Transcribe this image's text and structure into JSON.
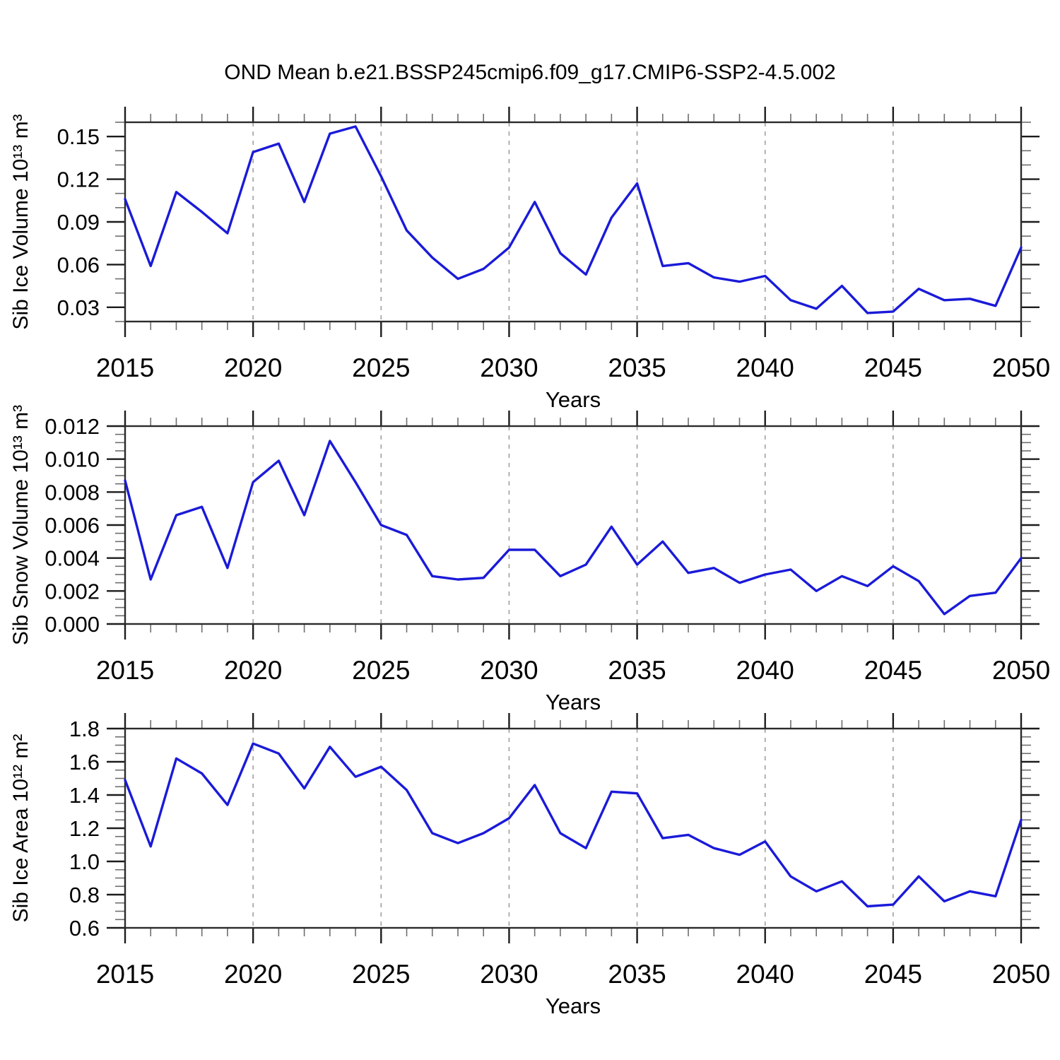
{
  "title": "OND Mean b.e21.BSSP245cmip6.f09_g17.CMIP6-SSP2-4.5.002",
  "line_color": "#1a1ad9",
  "frame_color": "#2b2b2b",
  "grid_color": "#9a9a9a",
  "chart_data": [
    {
      "type": "line",
      "name": "sib-ice-volume",
      "ylabel": "Sib Ice Volume 10¹³ m³",
      "xlabel": "Years",
      "x": [
        2015,
        2016,
        2017,
        2018,
        2019,
        2020,
        2021,
        2022,
        2023,
        2024,
        2025,
        2026,
        2027,
        2028,
        2029,
        2030,
        2031,
        2032,
        2033,
        2034,
        2035,
        2036,
        2037,
        2038,
        2039,
        2040,
        2041,
        2042,
        2043,
        2044,
        2045,
        2046,
        2047,
        2048,
        2049,
        2050
      ],
      "values": [
        0.106,
        0.059,
        0.111,
        0.097,
        0.082,
        0.139,
        0.145,
        0.104,
        0.152,
        0.157,
        0.122,
        0.084,
        0.065,
        0.05,
        0.057,
        0.072,
        0.104,
        0.068,
        0.053,
        0.093,
        0.117,
        0.059,
        0.061,
        0.051,
        0.048,
        0.052,
        0.035,
        0.029,
        0.045,
        0.026,
        0.027,
        0.043,
        0.035,
        0.036,
        0.031,
        0.072
      ],
      "xlim": [
        2015,
        2050
      ],
      "ylim": [
        0.02,
        0.16
      ],
      "xticks": [
        2015,
        2020,
        2025,
        2030,
        2035,
        2040,
        2045,
        2050
      ],
      "xtick_labels": [
        "2015",
        "2020",
        "2025",
        "2030",
        "2035",
        "2040",
        "2045",
        "2050"
      ],
      "x_minor_step": 1,
      "yticks": [
        0.03,
        0.06,
        0.09,
        0.12,
        0.15
      ],
      "ytick_labels": [
        "0.03",
        "0.06",
        "0.09",
        "0.12",
        "0.15"
      ],
      "y_minor_step": 0.01,
      "grid_lines_x": [
        2020,
        2025,
        2030,
        2035,
        2040,
        2045
      ],
      "grid_style": "dashed-vertical",
      "legend": "none"
    },
    {
      "type": "line",
      "name": "sib-snow-volume",
      "ylabel": "Sib Snow Volume 10¹³ m³",
      "xlabel": "Years",
      "x": [
        2015,
        2016,
        2017,
        2018,
        2019,
        2020,
        2021,
        2022,
        2023,
        2024,
        2025,
        2026,
        2027,
        2028,
        2029,
        2030,
        2031,
        2032,
        2033,
        2034,
        2035,
        2036,
        2037,
        2038,
        2039,
        2040,
        2041,
        2042,
        2043,
        2044,
        2045,
        2046,
        2047,
        2048,
        2049,
        2050
      ],
      "values": [
        0.0087,
        0.0027,
        0.0066,
        0.0071,
        0.0034,
        0.0086,
        0.0099,
        0.0066,
        0.0111,
        0.0086,
        0.006,
        0.0054,
        0.0029,
        0.0027,
        0.0028,
        0.0045,
        0.0045,
        0.0029,
        0.0036,
        0.0059,
        0.0036,
        0.005,
        0.0031,
        0.0034,
        0.0025,
        0.003,
        0.0033,
        0.002,
        0.0029,
        0.0023,
        0.0035,
        0.0026,
        0.0006,
        0.0017,
        0.0019,
        0.004
      ],
      "xlim": [
        2015,
        2050
      ],
      "ylim": [
        0.0,
        0.012
      ],
      "xticks": [
        2015,
        2020,
        2025,
        2030,
        2035,
        2040,
        2045,
        2050
      ],
      "xtick_labels": [
        "2015",
        "2020",
        "2025",
        "2030",
        "2035",
        "2040",
        "2045",
        "2050"
      ],
      "x_minor_step": 1,
      "yticks": [
        0.0,
        0.002,
        0.004,
        0.006,
        0.008,
        0.01,
        0.012
      ],
      "ytick_labels": [
        "0.000",
        "0.002",
        "0.004",
        "0.006",
        "0.008",
        "0.010",
        "0.012"
      ],
      "y_minor_step": 0.0005,
      "grid_lines_x": [
        2020,
        2025,
        2030,
        2035,
        2040,
        2045
      ],
      "grid_style": "dashed-vertical",
      "legend": "none"
    },
    {
      "type": "line",
      "name": "sib-ice-area",
      "ylabel": "Sib Ice Area 10¹² m²",
      "xlabel": "Years",
      "x": [
        2015,
        2016,
        2017,
        2018,
        2019,
        2020,
        2021,
        2022,
        2023,
        2024,
        2025,
        2026,
        2027,
        2028,
        2029,
        2030,
        2031,
        2032,
        2033,
        2034,
        2035,
        2036,
        2037,
        2038,
        2039,
        2040,
        2041,
        2042,
        2043,
        2044,
        2045,
        2046,
        2047,
        2048,
        2049,
        2050
      ],
      "values": [
        1.49,
        1.09,
        1.62,
        1.53,
        1.34,
        1.71,
        1.65,
        1.44,
        1.69,
        1.51,
        1.57,
        1.43,
        1.17,
        1.11,
        1.17,
        1.26,
        1.46,
        1.17,
        1.08,
        1.42,
        1.41,
        1.14,
        1.16,
        1.08,
        1.04,
        1.12,
        0.91,
        0.82,
        0.88,
        0.73,
        0.74,
        0.91,
        0.76,
        0.82,
        0.79,
        1.25
      ],
      "xlim": [
        2015,
        2050
      ],
      "ylim": [
        0.6,
        1.8
      ],
      "xticks": [
        2015,
        2020,
        2025,
        2030,
        2035,
        2040,
        2045,
        2050
      ],
      "xtick_labels": [
        "2015",
        "2020",
        "2025",
        "2030",
        "2035",
        "2040",
        "2045",
        "2050"
      ],
      "x_minor_step": 1,
      "yticks": [
        0.6,
        0.8,
        1.0,
        1.2,
        1.4,
        1.6,
        1.8
      ],
      "ytick_labels": [
        "0.6",
        "0.8",
        "1.0",
        "1.2",
        "1.4",
        "1.6",
        "1.8"
      ],
      "y_minor_step": 0.05,
      "grid_lines_x": [
        2020,
        2025,
        2030,
        2035,
        2040,
        2045
      ],
      "grid_style": "dashed-vertical",
      "legend": "none"
    }
  ]
}
